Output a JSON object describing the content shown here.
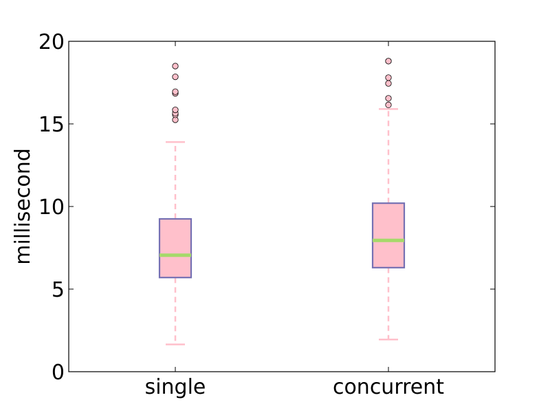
{
  "chart_data": {
    "type": "box",
    "title": "",
    "xlabel": "",
    "ylabel": "millisecond",
    "ylim": [
      0,
      20
    ],
    "yticks": [
      0,
      5,
      10,
      15,
      20
    ],
    "grid": false,
    "categories": [
      "single",
      "concurrent"
    ],
    "boxes": [
      {
        "category": "single",
        "whisker_low": 1.65,
        "q1": 5.7,
        "median": 7.05,
        "q3": 9.25,
        "whisker_high": 13.9,
        "outliers": [
          15.25,
          15.55,
          15.65,
          15.85,
          16.85,
          16.95,
          17.85,
          18.5
        ]
      },
      {
        "category": "concurrent",
        "whisker_low": 1.95,
        "q1": 6.3,
        "median": 7.95,
        "q3": 10.2,
        "whisker_high": 15.9,
        "outliers": [
          16.15,
          16.55,
          17.45,
          17.8,
          18.8,
          18.8
        ]
      }
    ],
    "colors": {
      "box_fill": "#ffc0cb",
      "box_edge": "#7570b3",
      "median": "#a6d96a",
      "whisker": "#ffc0cb",
      "cap": "#ffc0cb",
      "outlier_fill": "#ffc0cb",
      "outlier_edge": "#000000",
      "axes": "#000000"
    }
  }
}
